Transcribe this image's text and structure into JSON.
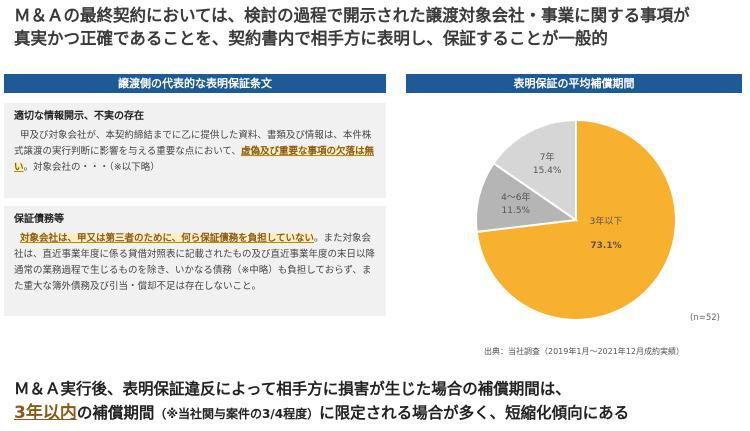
{
  "headline": {
    "line1": "Ｍ＆Ａの最終契約においては、検討の過程で開示された譲渡対象会社・事業に関する事項が",
    "line2": "真実かつ正確であることを、契約書内で相手方に表明し、保証することが一般的"
  },
  "left_panel": {
    "header": "譲渡側の代表的な表明保証条文",
    "clause1": {
      "title": "適切な情報開示、不実の存在",
      "text_before": "甲及び対象会社が、本契約締結までに乙に提供した資料、書類及び情報は、本件株式譲渡の実行判断に影響を与える重要な点において、",
      "highlight": "虚偽及び重要な事項の欠落は無い",
      "text_after": "。対象会社の・・・（※以下略）"
    },
    "clause2": {
      "title": "保証債務等",
      "highlight": "対象会社は、甲又は第三者のために、何ら保証債務を負担していない",
      "text_after": "。また対象会社は、直近事業年度に係る貸借対照表に記載されたもの及び直近事業年度の末日以降通常の業務過程で生じるものを除き、いかなる債務（※中略）も負担しておらず、また重大な簿外債務及び引当・償却不足は存在しないこと。"
    }
  },
  "right_panel": {
    "header": "表明保証の平均補償期間",
    "n_note": "(n=52)",
    "source": "出典：当社調査（2019年1月〜2021年12月成約実績）"
  },
  "chart_data": {
    "type": "pie",
    "categories": [
      "3年以下",
      "4〜6年",
      "7年"
    ],
    "values": [
      73.1,
      11.5,
      15.4
    ],
    "labels": [
      "73.1%",
      "11.5%",
      "15.4%"
    ],
    "colors": [
      "#f7b12e",
      "#b5b5b5",
      "#d6d6d6"
    ]
  },
  "bottom": {
    "line1": "Ｍ＆Ａ実行後、表明保証違反によって相手方に損害が生じた場合の補償期間は、",
    "emph": "3年以内",
    "mid": "の補償期間",
    "note": "（※当社関与案件の3/4程度）",
    "end": "に限定される場合が多く、短縮化傾向にある"
  }
}
